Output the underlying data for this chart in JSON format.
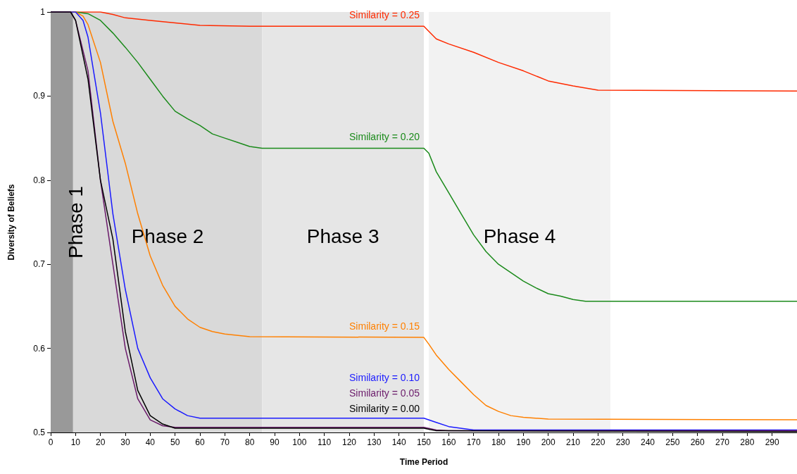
{
  "chart_data": {
    "type": "line",
    "xlabel": "Time Period",
    "ylabel": "Diversity of Beliefs",
    "xlim": [
      0,
      300
    ],
    "xticks": [
      0,
      10,
      20,
      30,
      40,
      50,
      60,
      70,
      80,
      90,
      100,
      110,
      120,
      130,
      140,
      150,
      160,
      170,
      180,
      190,
      200,
      210,
      220,
      230,
      240,
      250,
      260,
      270,
      280,
      290
    ],
    "ylim": [
      0.5,
      1
    ],
    "yticks": [
      0.5,
      0.6,
      0.7,
      0.8,
      0.9,
      1
    ],
    "grid": false,
    "legend": false,
    "marker": "none",
    "line_style": "solid",
    "bands": [
      {
        "axis": "x",
        "from": 0,
        "to": 9,
        "label": "Phase 1",
        "color": "#999999"
      },
      {
        "axis": "x",
        "from": 9,
        "to": 85,
        "label": "Phase 2",
        "color": "#d9d9d9"
      },
      {
        "axis": "x",
        "from": 85,
        "to": 150,
        "label": "Phase 3",
        "color": "#e6e6e6"
      },
      {
        "axis": "x",
        "from": 152,
        "to": 225,
        "label": "Phase 4",
        "color": "#f2f2f2"
      }
    ],
    "series": [
      {
        "name": "Similarity = 0.25",
        "color": "#ff2a00",
        "x": [
          0,
          20,
          25,
          30,
          40,
          50,
          60,
          80,
          150,
          152,
          155,
          160,
          170,
          180,
          190,
          200,
          210,
          220,
          300
        ],
        "values": [
          1,
          1,
          0.997,
          0.993,
          0.99,
          0.987,
          0.984,
          0.983,
          0.983,
          0.977,
          0.968,
          0.962,
          0.952,
          0.94,
          0.93,
          0.918,
          0.912,
          0.907,
          0.906
        ]
      },
      {
        "name": "Similarity = 0.20",
        "color": "#1a8a1a",
        "x": [
          0,
          10,
          15,
          20,
          25,
          30,
          35,
          40,
          45,
          50,
          55,
          60,
          65,
          70,
          75,
          80,
          85,
          150,
          152,
          155,
          160,
          165,
          170,
          175,
          180,
          185,
          190,
          195,
          200,
          205,
          210,
          215,
          300
        ],
        "values": [
          1,
          1,
          0.998,
          0.99,
          0.975,
          0.958,
          0.94,
          0.92,
          0.9,
          0.882,
          0.873,
          0.865,
          0.855,
          0.85,
          0.845,
          0.84,
          0.838,
          0.838,
          0.832,
          0.81,
          0.785,
          0.76,
          0.735,
          0.715,
          0.7,
          0.69,
          0.68,
          0.672,
          0.665,
          0.662,
          0.658,
          0.656,
          0.656
        ]
      },
      {
        "name": "Similarity = 0.15",
        "color": "#ff8000",
        "x": [
          0,
          10,
          13,
          15,
          20,
          25,
          30,
          35,
          40,
          45,
          50,
          55,
          60,
          65,
          70,
          80,
          150,
          152,
          155,
          160,
          165,
          170,
          175,
          180,
          185,
          190,
          200,
          300
        ],
        "values": [
          1,
          1,
          0.995,
          0.985,
          0.94,
          0.87,
          0.82,
          0.76,
          0.71,
          0.675,
          0.65,
          0.635,
          0.625,
          0.62,
          0.617,
          0.614,
          0.613,
          0.605,
          0.592,
          0.575,
          0.56,
          0.545,
          0.532,
          0.525,
          0.52,
          0.518,
          0.516,
          0.515
        ]
      },
      {
        "name": "Similarity = 0.10",
        "color": "#1a1aff",
        "x": [
          0,
          10,
          13,
          15,
          20,
          25,
          30,
          35,
          40,
          45,
          50,
          55,
          60,
          150,
          155,
          160,
          170,
          300
        ],
        "values": [
          1,
          1,
          0.99,
          0.97,
          0.88,
          0.76,
          0.67,
          0.6,
          0.565,
          0.54,
          0.528,
          0.52,
          0.517,
          0.517,
          0.512,
          0.507,
          0.503,
          0.503
        ]
      },
      {
        "name": "Similarity = 0.05",
        "color": "#6a1a6a",
        "x": [
          0,
          8,
          10,
          15,
          20,
          25,
          30,
          35,
          40,
          45,
          50,
          150,
          155,
          160,
          300
        ],
        "values": [
          1,
          1,
          0.99,
          0.93,
          0.8,
          0.7,
          0.6,
          0.54,
          0.515,
          0.508,
          0.506,
          0.506,
          0.503,
          0.502,
          0.502
        ]
      },
      {
        "name": "Similarity = 0.00",
        "color": "#000000",
        "x": [
          0,
          8,
          10,
          15,
          20,
          25,
          30,
          35,
          40,
          45,
          50,
          150,
          155,
          300
        ],
        "values": [
          1,
          1,
          0.99,
          0.92,
          0.8,
          0.73,
          0.62,
          0.55,
          0.52,
          0.51,
          0.505,
          0.505,
          0.502,
          0.501
        ]
      }
    ]
  }
}
